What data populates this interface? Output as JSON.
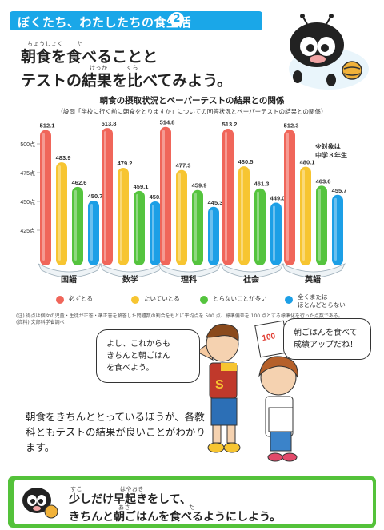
{
  "header": {
    "title": "ぼくたち、わたしたちの食生活",
    "number": "2"
  },
  "title": {
    "ruby1": "ちょうしょく",
    "ruby2": "た",
    "line1": "朝食を食べることと",
    "ruby3": "けっか",
    "ruby4": "くら",
    "line2": "テストの結果を比べてみよう。"
  },
  "chart_heading": {
    "title": "朝食の摂取状況とペーパーテストの結果との関係",
    "subtitle": "（設問「学校に行く前に朝食をとりますか」についての回答状況とペーパーテストの結果との関係）"
  },
  "note": {
    "line1": "※対象は",
    "line2": "中学３年生"
  },
  "chart_data": {
    "type": "bar",
    "categories": [
      "国語",
      "数学",
      "理科",
      "社会",
      "英語"
    ],
    "series": [
      {
        "name": "必ずとる",
        "values": [
          512.1,
          513.8,
          514.8,
          513.2,
          512.3
        ]
      },
      {
        "name": "たいていとる",
        "values": [
          483.9,
          479.2,
          477.3,
          480.5,
          480.1
        ]
      },
      {
        "name": "とらないことが多い",
        "values": [
          462.6,
          459.1,
          459.9,
          461.3,
          463.6
        ]
      },
      {
        "name": "全くまたはほとんどとらない",
        "values": [
          450.7,
          450.0,
          445.3,
          449.0,
          455.7
        ]
      }
    ],
    "value_labels": [
      [
        "512.1",
        "483.9",
        "462.6",
        "450.7"
      ],
      [
        "513.8",
        "479.2",
        "459.1",
        "450.0"
      ],
      [
        "514.8",
        "477.3",
        "459.9",
        "445.3"
      ],
      [
        "513.2",
        "480.5",
        "461.3",
        "449.0"
      ],
      [
        "512.3",
        "480.1",
        "463.6",
        "455.7"
      ]
    ],
    "yticks": [
      500,
      475,
      450,
      425
    ],
    "ytick_labels": [
      "500点",
      "475点",
      "450点",
      "425点"
    ],
    "ylim": [
      400,
      525
    ],
    "colors": [
      "#f0665a",
      "#f7c531",
      "#55c43e",
      "#1c9fe6"
    ],
    "grid": false,
    "legend_position": "bottom"
  },
  "legend": {
    "items": [
      "必ずとる",
      "たいていとる",
      "とらないことが多い",
      "全くまたは",
      "ほとんどとらない"
    ]
  },
  "footnote": {
    "line1": "(注) 得点は個々の児童・生徒が正答・準正答を解答した問題数の割合をもとに平均点を 500 点、標準偏差を 100 点とする標準化を行った点数である。",
    "line2": "(資料) 文部科学省調べ"
  },
  "bubble_left": {
    "line1": "よし、これからも",
    "line2": "きちんと朝ごはん",
    "line3": "を食べよう。"
  },
  "bubble_right": {
    "line1": "朝ごはんを食べて",
    "line2": "成績アップだね！"
  },
  "paper_score": "100",
  "shirt_letter": "S",
  "body_text": "朝食をきちんととっているほうが、各教科ともテストの結果が良いことがわかります。",
  "bottom": {
    "ruby1": "すこ",
    "ruby2": "はやおき",
    "line1": "少しだけ早起きをして、",
    "ruby3": "あさ",
    "ruby4": "た",
    "line2": "きちんと朝ごはんを食べるようにしよう。"
  }
}
